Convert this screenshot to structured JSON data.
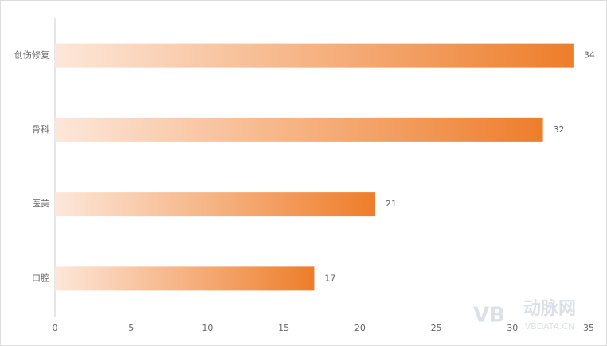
{
  "chart_data": {
    "type": "hbar",
    "categories": [
      "创伤修复",
      "骨科",
      "医美",
      "口腔"
    ],
    "values": [
      34,
      32,
      21,
      17
    ],
    "gradient": [
      "#fde7da",
      "#ee7d2a"
    ],
    "xlim": [
      0,
      35
    ],
    "xticks": [
      0,
      5,
      10,
      15,
      20,
      25,
      30,
      35
    ],
    "grid": false,
    "watermark": {
      "logo": "VB",
      "name": "动脉网",
      "site": "VBDATA.CN"
    }
  }
}
